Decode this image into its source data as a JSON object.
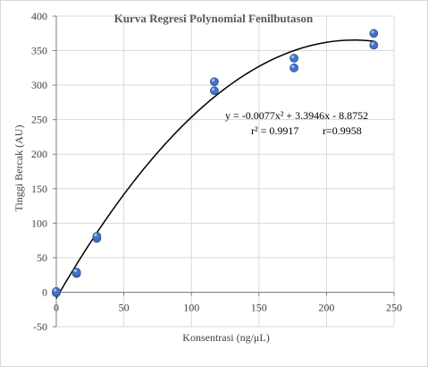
{
  "chart_data": {
    "type": "scatter",
    "title": "Kurva Regresi Polynomial Fenilbutason",
    "xlabel": "Konsentrasi (ng/μL)",
    "ylabel": "Tinggi Bercak (AU)",
    "xlim": [
      0,
      250
    ],
    "ylim": [
      -50,
      400
    ],
    "xticks": [
      "0",
      "50",
      "100",
      "150",
      "200",
      "250"
    ],
    "yticks": [
      "-50",
      "0",
      "50",
      "100",
      "150",
      "200",
      "250",
      "300",
      "350",
      "400"
    ],
    "grid": "vertical and horizontal",
    "series": [
      {
        "x": [
          0,
          0,
          15,
          15,
          30,
          30,
          117,
          117,
          176,
          176,
          235,
          235
        ],
        "y": [
          -1,
          1,
          27,
          29,
          78,
          81,
          292,
          305,
          325,
          339,
          358,
          375
        ],
        "color": "#4472c4"
      }
    ],
    "trendline": {
      "type": "polynomial",
      "a": -0.0077,
      "b": 3.3946,
      "c": -8.8752,
      "x_range": [
        0,
        236
      ],
      "color": "#000000"
    },
    "annotations": {
      "equation": "y = -0.0077x² + 3.3946x - 8.8752",
      "r_squared": "r² = 0.9917",
      "r": "r=0.9958"
    }
  }
}
